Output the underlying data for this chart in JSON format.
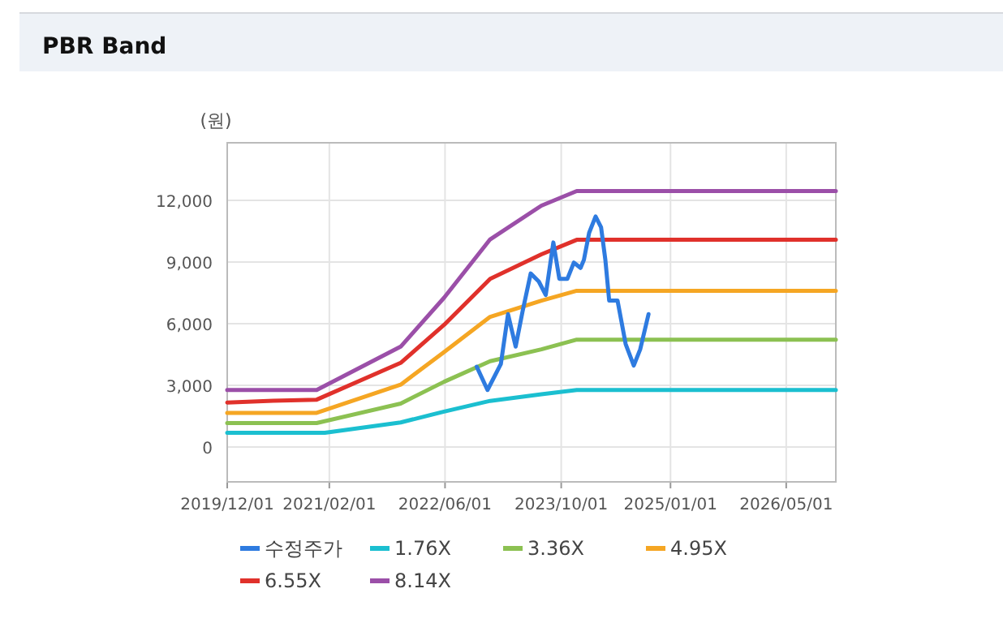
{
  "chart_data": {
    "type": "line",
    "title": "PBR Band",
    "ylabel": "(원)",
    "xlim": [
      "2019-12-01",
      "2026-11-25"
    ],
    "ylim": [
      -1700,
      14800
    ],
    "xticks": [
      {
        "value": "2019-12-01",
        "label": "2019/12/01"
      },
      {
        "value": "2021-02-01",
        "label": "2021/02/01"
      },
      {
        "value": "2022-06-01",
        "label": "2022/06/01"
      },
      {
        "value": "2023-10-01",
        "label": "2023/10/01"
      },
      {
        "value": "2025-01-01",
        "label": "2025/01/01"
      },
      {
        "value": "2026-05-01",
        "label": "2026/05/01"
      }
    ],
    "yticks": [
      0,
      {
        "value": 3000,
        "label": "3,000"
      },
      {
        "value": 6000,
        "label": "6,000"
      },
      {
        "value": 9000,
        "label": "9,000"
      },
      {
        "value": 12000,
        "label": "12,000"
      }
    ],
    "grid": true,
    "legend": "bottom",
    "marker": "none",
    "line_style": "solid",
    "series": [
      {
        "name": "수정주가",
        "color": "#2e7be0",
        "x": [
          "2022-10-12",
          "2022-11-26",
          "2023-01-21",
          "2023-02-20",
          "2023-03-24",
          "2023-04-22",
          "2023-05-26",
          "2023-06-29",
          "2023-07-28",
          "2023-08-29",
          "2023-09-23",
          "2023-10-27",
          "2023-11-23",
          "2023-12-21",
          "2024-01-04",
          "2024-01-26",
          "2024-02-22",
          "2024-03-16",
          "2024-04-03",
          "2024-04-19",
          "2024-05-24",
          "2024-06-27",
          "2024-07-31",
          "2024-08-27",
          "2024-10-01"
        ],
        "values": [
          3900,
          2770,
          4040,
          6460,
          4880,
          6600,
          8440,
          8050,
          7390,
          9950,
          8180,
          8180,
          8970,
          8710,
          9100,
          10420,
          11210,
          10690,
          9100,
          7120,
          7120,
          5010,
          3960,
          4750,
          6460
        ]
      },
      {
        "name": "1.76X",
        "color": "#1bbfd0",
        "x": [
          "2019-12-01",
          "2021-01-13",
          "2021-11-27",
          "2022-05-28",
          "2022-12-07",
          "2023-07-10",
          "2023-12-05",
          "2026-11-25"
        ],
        "values": [
          690,
          690,
          1190,
          1720,
          2240,
          2560,
          2770,
          2770
        ]
      },
      {
        "name": "3.36X",
        "color": "#8cc152",
        "x": [
          "2019-12-01",
          "2020-12-10",
          "2021-11-27",
          "2022-05-28",
          "2022-12-07",
          "2023-07-10",
          "2023-12-05",
          "2026-11-25"
        ],
        "values": [
          1160,
          1160,
          2110,
          3170,
          4170,
          4750,
          5220,
          5220
        ]
      },
      {
        "name": "4.95X",
        "color": "#f5a623",
        "x": [
          "2019-12-01",
          "2020-12-10",
          "2021-11-27",
          "2022-05-28",
          "2022-12-07",
          "2023-07-10",
          "2023-12-05",
          "2026-11-25"
        ],
        "values": [
          1660,
          1660,
          3030,
          4620,
          6330,
          7120,
          7600,
          7600
        ]
      },
      {
        "name": "6.55X",
        "color": "#e0312b",
        "x": [
          "2019-12-01",
          "2020-06-11",
          "2020-12-10",
          "2021-11-27",
          "2022-05-28",
          "2022-12-07",
          "2023-07-10",
          "2023-12-05",
          "2026-11-25"
        ],
        "values": [
          2160,
          2250,
          2300,
          4090,
          5940,
          8180,
          9370,
          10080,
          10080
        ]
      },
      {
        "name": "8.14X",
        "color": "#9b4fa8",
        "x": [
          "2019-12-01",
          "2020-12-10",
          "2021-11-27",
          "2022-05-28",
          "2022-12-07",
          "2023-07-10",
          "2023-12-05",
          "2026-11-25"
        ],
        "values": [
          2770,
          2770,
          4880,
          7260,
          10100,
          11740,
          12450,
          12450
        ]
      }
    ]
  }
}
